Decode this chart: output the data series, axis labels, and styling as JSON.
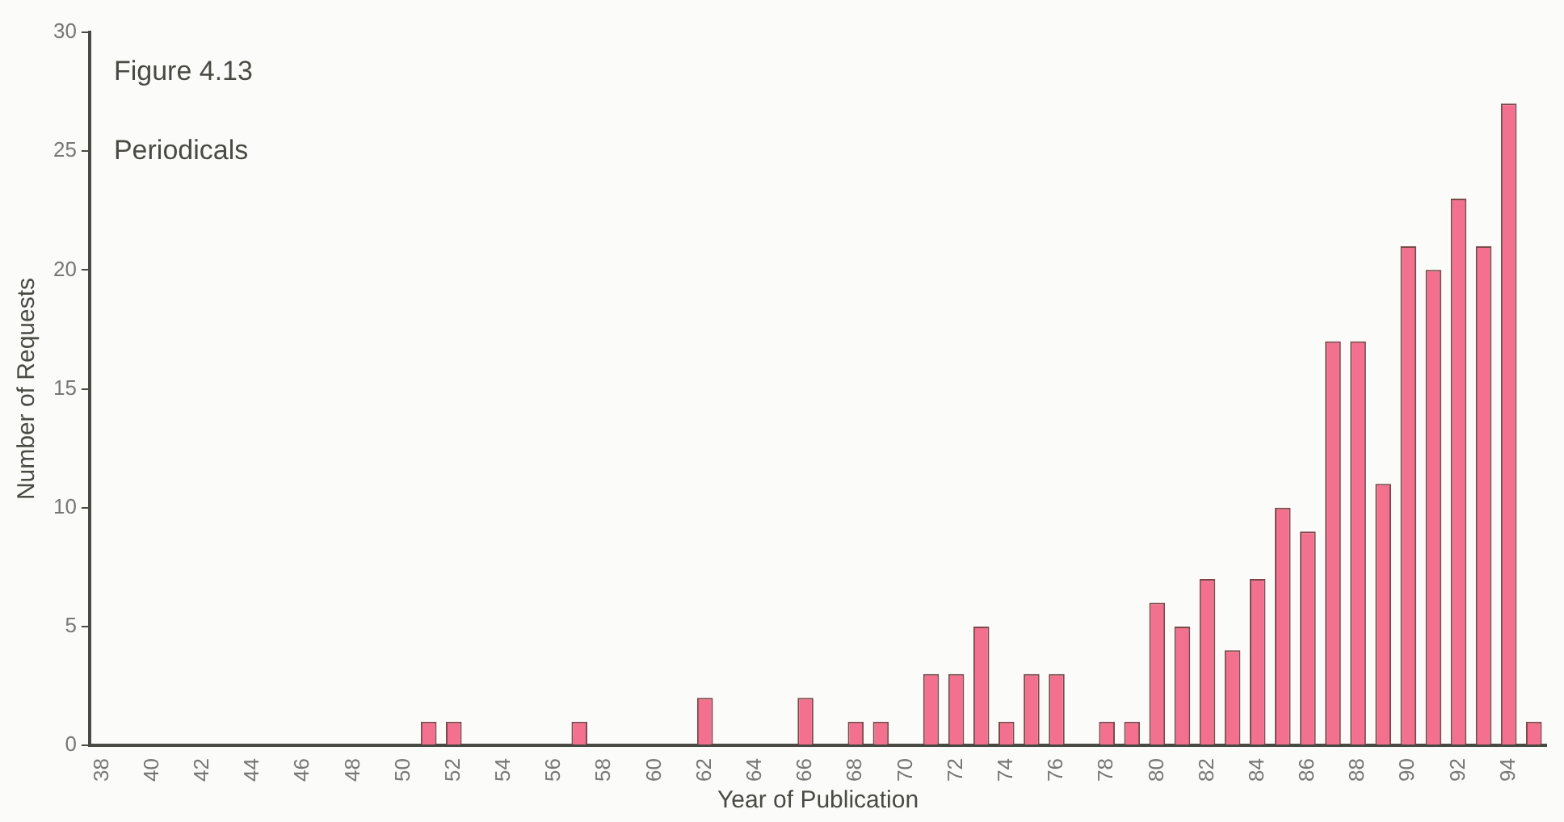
{
  "chart_data": {
    "type": "bar",
    "title": "Figure 4.13",
    "subtitle": "Periodicals",
    "xlabel": "Year of Publication",
    "ylabel": "Number of Requests",
    "categories": [
      "38",
      null,
      "40",
      null,
      "42",
      null,
      "44",
      null,
      "46",
      null,
      "48",
      null,
      "50",
      null,
      "52",
      null,
      "54",
      null,
      "56",
      null,
      "58",
      null,
      "60",
      null,
      "62",
      null,
      "64",
      null,
      "66",
      null,
      "68",
      null,
      "70",
      null,
      "72",
      null,
      "74",
      null,
      "76",
      null,
      "78",
      null,
      "80",
      null,
      "82",
      null,
      "84",
      null,
      "86",
      null,
      "88",
      null,
      "90",
      null,
      "92",
      null,
      "94",
      null
    ],
    "values": [
      0,
      0,
      0,
      0,
      0,
      0,
      0,
      0,
      0,
      0,
      0,
      0,
      0,
      1,
      1,
      0,
      0,
      0,
      0,
      1,
      0,
      0,
      0,
      0,
      2,
      0,
      0,
      0,
      2,
      0,
      1,
      1,
      0,
      3,
      3,
      5,
      1,
      3,
      3,
      0,
      1,
      1,
      6,
      5,
      7,
      4,
      7,
      10,
      9,
      17,
      17,
      11,
      21,
      20,
      23,
      21,
      27,
      1
    ],
    "color": "#f4708f",
    "ylim": [
      0,
      30
    ],
    "yticks": [
      0,
      5,
      10,
      15,
      20,
      25,
      30
    ],
    "grid": false,
    "legend": false
  }
}
